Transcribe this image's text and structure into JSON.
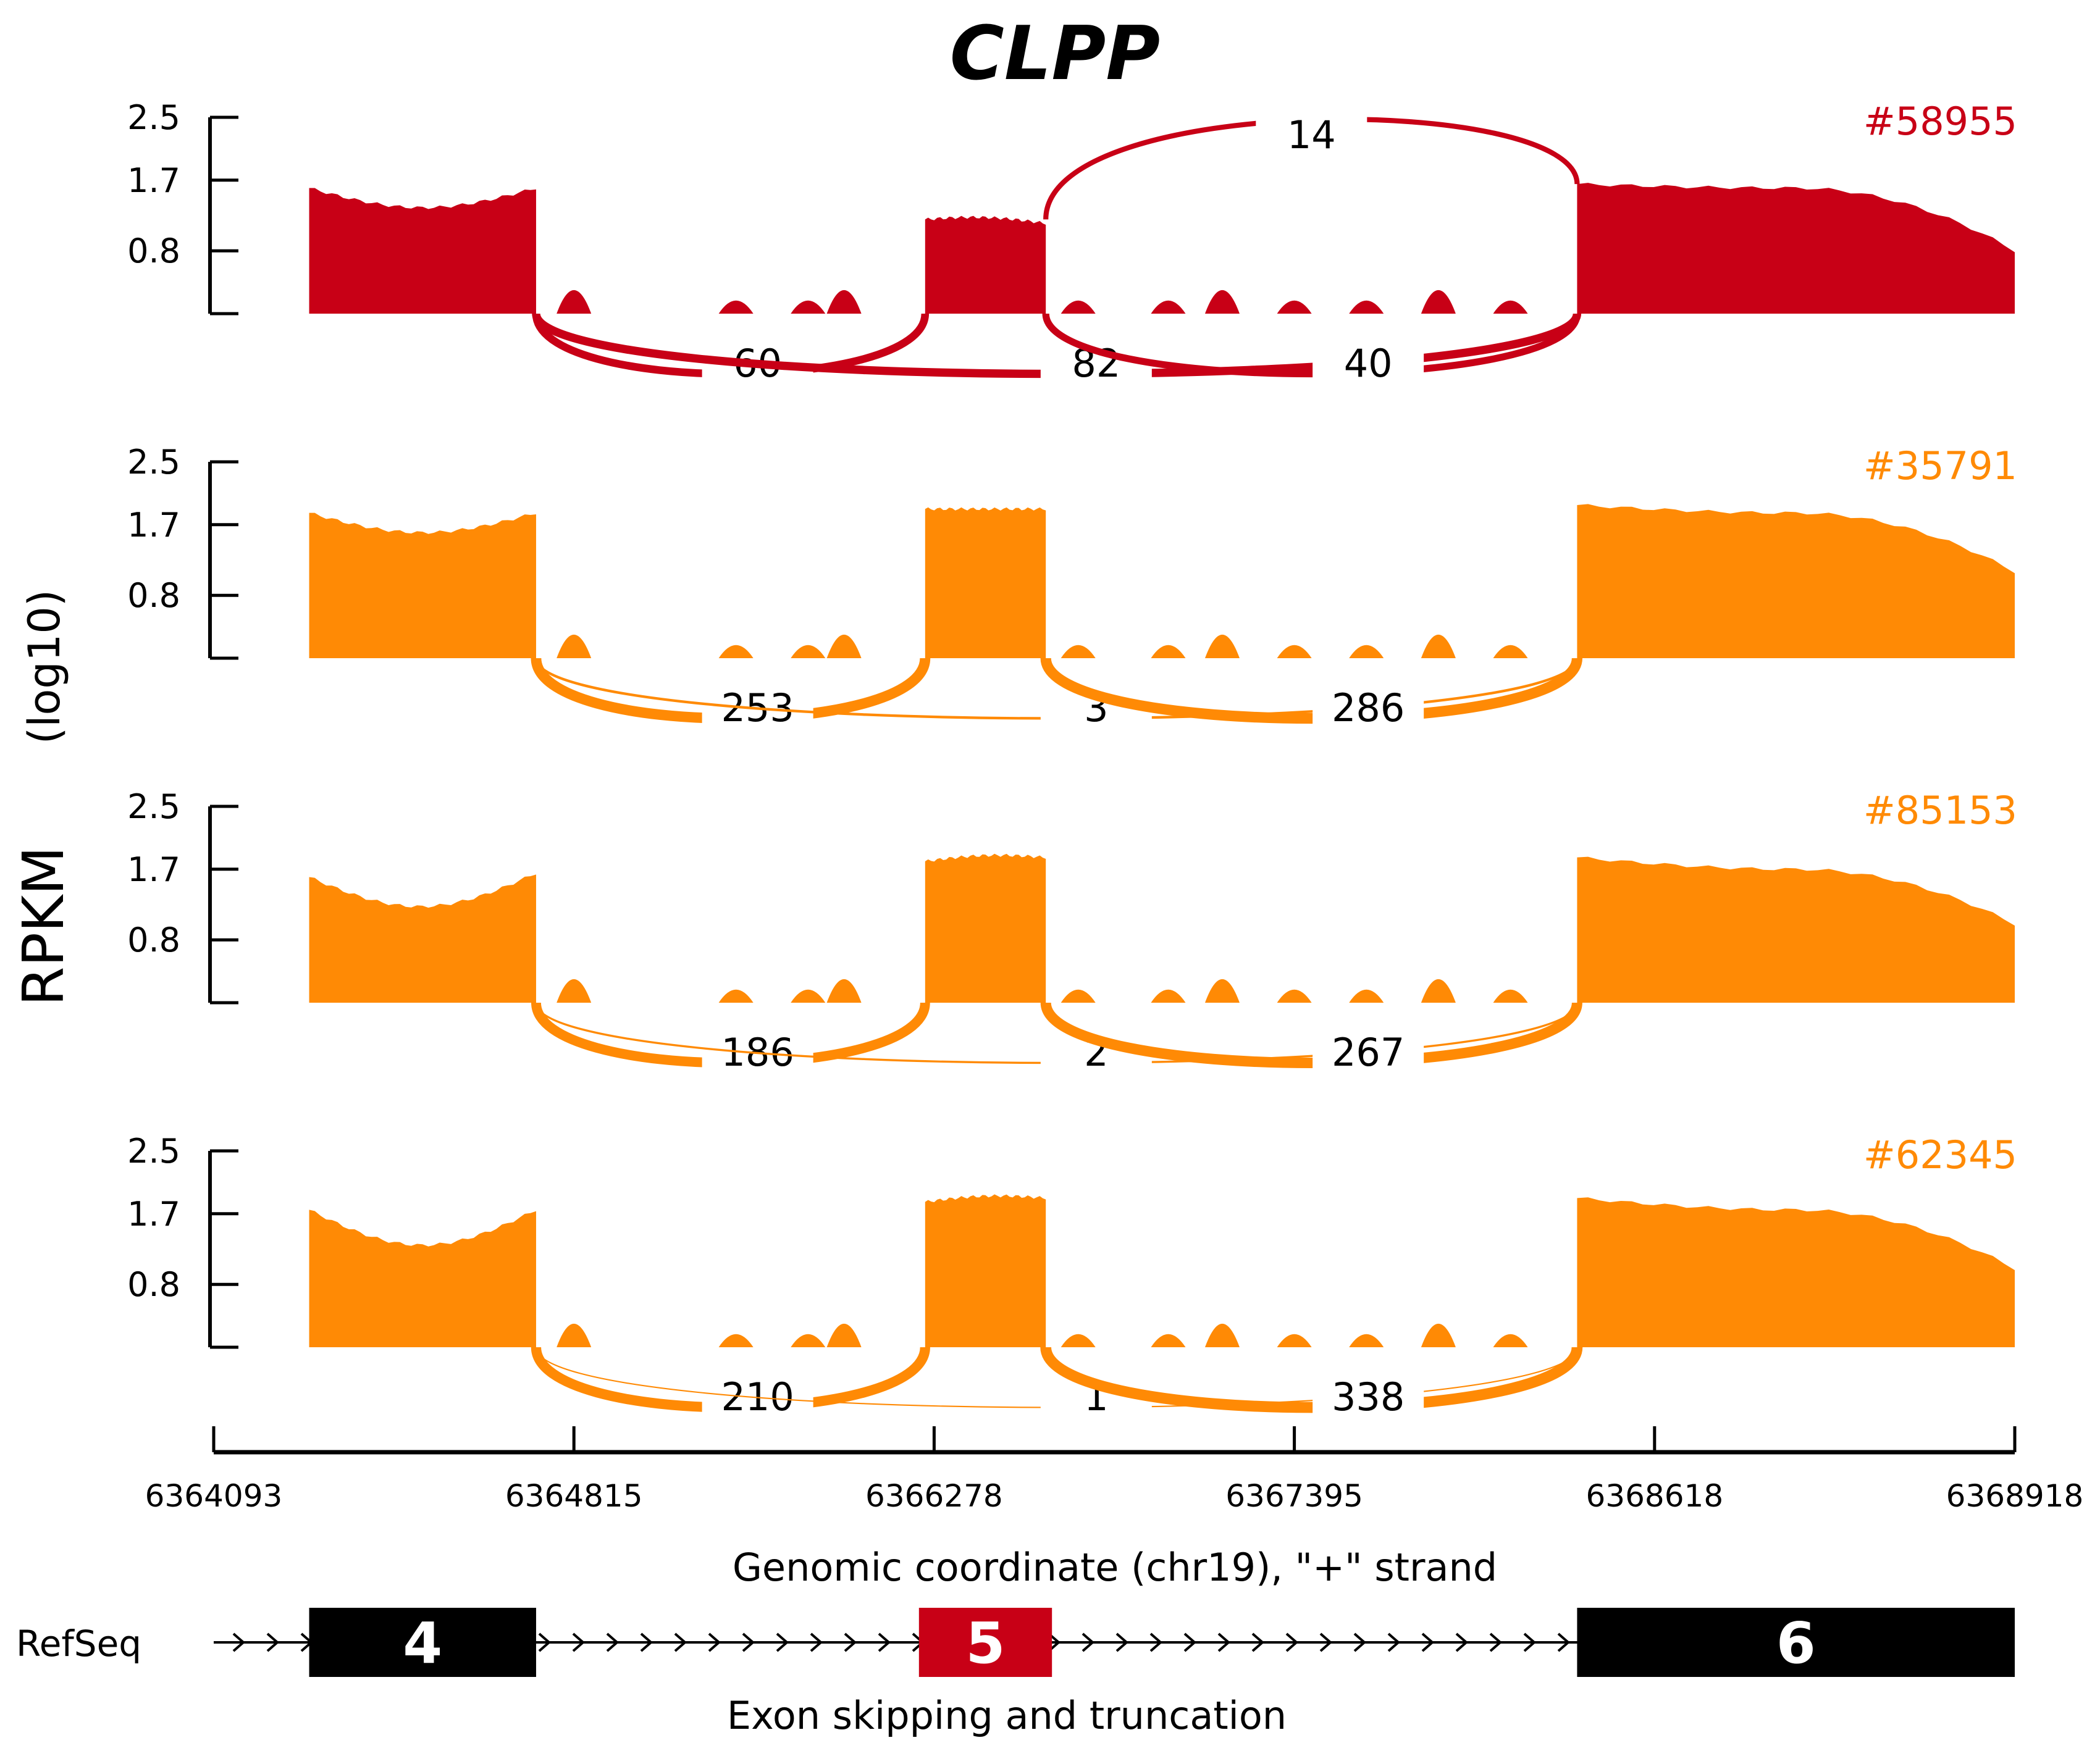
{
  "colors": {
    "red": "#c80016",
    "orange": "#ff8a05",
    "axis": "#000000"
  },
  "chart_data": {
    "type": "sashimi",
    "title": "CLPP",
    "ylabel": "RPKM",
    "ylabel_sub": "(log10)",
    "yticks": [
      0.8,
      1.7,
      2.5
    ],
    "ylim": [
      0,
      2.5
    ],
    "xlabel": "Genomic coordinate (chr19), \"+\" strand",
    "x_ticks": [
      "6364093",
      "6364815",
      "6366278",
      "6367395",
      "6368618",
      "6368918"
    ],
    "regions": [
      {
        "name": "exon4",
        "start": 0.053,
        "end": 0.179
      },
      {
        "name": "exon5",
        "start": 0.395,
        "end": 0.462
      },
      {
        "name": "exon6",
        "start": 0.757,
        "end": 1.0
      }
    ],
    "tracks": [
      {
        "sample": "#58955",
        "color": "red",
        "exon_levels": [
          [
            1.6,
            1.35,
            1.6
          ],
          [
            1.2,
            1.25,
            1.15
          ],
          [
            1.65,
            1.6,
            0.8
          ]
        ],
        "junctions": [
          {
            "label": "14",
            "count": 14,
            "from": "exon5",
            "to": "exon6",
            "side": "top"
          },
          {
            "label": "60",
            "count": 60,
            "from": "exon4",
            "to": "exon5",
            "side": "bottom"
          },
          {
            "label": "82",
            "count": 82,
            "from": "exon4",
            "to": "exon6",
            "side": "bottom"
          },
          {
            "label": "40",
            "count": 40,
            "from": "exon5",
            "to": "exon6",
            "side": "bottom"
          }
        ]
      },
      {
        "sample": "#35791",
        "color": "orange",
        "exon_levels": [
          [
            1.85,
            1.6,
            1.85
          ],
          [
            1.9,
            1.9,
            1.9
          ],
          [
            1.95,
            1.85,
            1.1
          ]
        ],
        "junctions": [
          {
            "label": "253",
            "count": 253,
            "from": "exon4",
            "to": "exon5",
            "side": "bottom"
          },
          {
            "label": "3",
            "count": 3,
            "from": "exon4",
            "to": "exon6",
            "side": "bottom"
          },
          {
            "label": "286",
            "count": 286,
            "from": "exon5",
            "to": "exon6",
            "side": "bottom"
          }
        ]
      },
      {
        "sample": "#85153",
        "color": "orange",
        "exon_levels": [
          [
            1.6,
            1.2,
            1.65
          ],
          [
            1.8,
            1.85,
            1.85
          ],
          [
            1.85,
            1.7,
            1.0
          ]
        ],
        "junctions": [
          {
            "label": "186",
            "count": 186,
            "from": "exon4",
            "to": "exon5",
            "side": "bottom"
          },
          {
            "label": "2",
            "count": 2,
            "from": "exon4",
            "to": "exon6",
            "side": "bottom"
          },
          {
            "label": "267",
            "count": 267,
            "from": "exon5",
            "to": "exon6",
            "side": "bottom"
          }
        ]
      },
      {
        "sample": "#62345",
        "color": "orange",
        "exon_levels": [
          [
            1.75,
            1.3,
            1.75
          ],
          [
            1.85,
            1.9,
            1.9
          ],
          [
            1.9,
            1.75,
            1.0
          ]
        ],
        "junctions": [
          {
            "label": "210",
            "count": 210,
            "from": "exon4",
            "to": "exon5",
            "side": "bottom"
          },
          {
            "label": "1",
            "count": 1,
            "from": "exon4",
            "to": "exon6",
            "side": "bottom"
          },
          {
            "label": "338",
            "count": 338,
            "from": "exon5",
            "to": "exon6",
            "side": "bottom"
          }
        ]
      }
    ],
    "gene_model": {
      "track_label": "RefSeq",
      "exons": [
        {
          "label": "4",
          "color": "black"
        },
        {
          "label": "5",
          "color": "red"
        },
        {
          "label": "6",
          "color": "black"
        }
      ],
      "caption": "Exon skipping and truncation"
    }
  }
}
